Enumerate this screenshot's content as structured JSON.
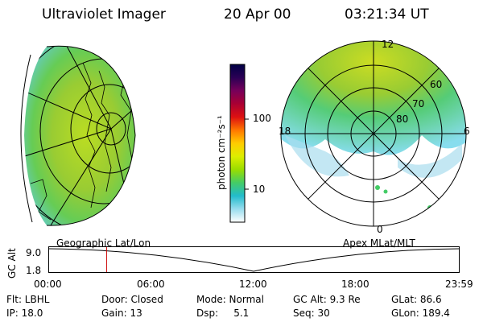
{
  "header": {
    "title": "Ultraviolet Imager",
    "date": "20 Apr 00",
    "time": "03:21:34 UT"
  },
  "colorbar": {
    "unit_label": "photon cm⁻²s⁻¹",
    "ticks": [
      "100",
      "10"
    ],
    "stops": [
      "#000044",
      "#2a0055",
      "#77005a",
      "#aa0033",
      "#dd1111",
      "#ff7700",
      "#ffcc00",
      "#ddee00",
      "#99dd00",
      "#44cc66",
      "#22bbcc",
      "#99ddee",
      "#ffffff"
    ]
  },
  "polar_plot": {
    "mlt_labels": {
      "top": "12",
      "left": "18",
      "right": "6",
      "bottom": "0"
    },
    "lat_labels": [
      "60",
      "70",
      "80"
    ]
  },
  "timeline": {
    "left_title": "Geographic Lat/Lon",
    "right_title": "Apex MLat/MLT",
    "axis_label": "GC Alt",
    "y_ticks": [
      "9.0",
      "1.8"
    ],
    "x_ticks": [
      "00:00",
      "06:00",
      "12:00",
      "18:00",
      "23:59"
    ],
    "marker_hour": 3.36,
    "marker_color": "#cc0000"
  },
  "metadata": {
    "row1": [
      "Flt: LBHL",
      "Door: Closed",
      "Mode: Normal",
      "GC Alt: 9.3 Re",
      "GLat: 86.6"
    ],
    "row2": [
      "IP: 18.0",
      "Gain: 13",
      "Dsp:     5.1",
      "Seq: 30",
      "GLon: 189.4"
    ]
  }
}
